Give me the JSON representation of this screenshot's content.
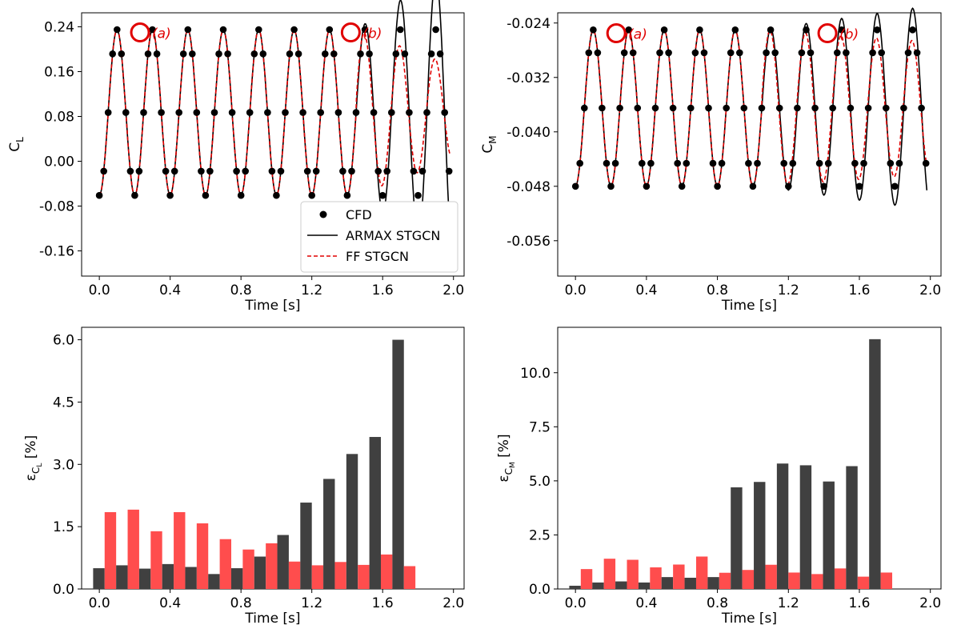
{
  "colors": {
    "cfd": "#000000",
    "armax": "#000000",
    "ff": "#e00000",
    "bar_armax": "#404040",
    "bar_ff": "#ff4d4d",
    "circle": "#e00000"
  },
  "legend": {
    "cfd": "CFD",
    "armax": "ARMAX STGCN",
    "ff": "FF STGCN"
  },
  "chart_data": [
    {
      "id": "cl",
      "type": "line",
      "xlabel": "Time [s]",
      "ylabel": "C",
      "ylabel_sub": "L",
      "xlim": [
        -0.1,
        2.06
      ],
      "ylim": [
        -0.205,
        0.265
      ],
      "xticks": [
        0.0,
        0.4,
        0.8,
        1.2,
        1.6,
        2.0
      ],
      "xtick_labels": [
        "0.0",
        "0.4",
        "0.8",
        "1.2",
        "1.6",
        "2.0"
      ],
      "yticks": [
        -0.16,
        -0.08,
        0.0,
        0.08,
        0.16,
        0.24
      ],
      "ytick_labels": [
        "-0.16",
        "-0.08",
        "0.00",
        "0.08",
        "0.16",
        "0.24"
      ],
      "signal": {
        "period": 0.2,
        "t_end": 1.98,
        "mean": 0.087,
        "amp": 0.148,
        "phase_t": 0.05,
        "cfd_step": 0.025,
        "armax_growth": [
          1.45,
          1.75
        ],
        "ff_shrink": [
          1.45,
          0.58
        ]
      },
      "annotations": [
        {
          "x": 0.23,
          "y": 0.23,
          "label": "(a)"
        },
        {
          "x": 1.42,
          "y": 0.23,
          "label": "(b)"
        }
      ]
    },
    {
      "id": "cm",
      "type": "line",
      "xlabel": "Time [s]",
      "ylabel": "C",
      "ylabel_sub": "M",
      "xlim": [
        -0.1,
        2.06
      ],
      "ylim": [
        -0.0612,
        -0.0225
      ],
      "xticks": [
        0.0,
        0.4,
        0.8,
        1.2,
        1.6,
        2.0
      ],
      "xtick_labels": [
        "0.0",
        "0.4",
        "0.8",
        "1.2",
        "1.6",
        "2.0"
      ],
      "yticks": [
        -0.056,
        -0.048,
        -0.04,
        -0.032,
        -0.024
      ],
      "ytick_labels": [
        "-0.056",
        "-0.048",
        "-0.040",
        "-0.032",
        "-0.024"
      ],
      "signal": {
        "period": 0.2,
        "t_end": 1.98,
        "mean": -0.0365,
        "amp": 0.0115,
        "phase_t": 0.05,
        "cfd_step": 0.025,
        "armax_growth": [
          1.05,
          1.3
        ],
        "ff_shrink": [
          1.05,
          0.85
        ]
      },
      "annotations": [
        {
          "x": 0.23,
          "y": -0.0255,
          "label": "(a)"
        },
        {
          "x": 1.42,
          "y": -0.0255,
          "label": "(b)"
        }
      ]
    },
    {
      "id": "err_cl",
      "type": "bar",
      "xlabel": "Time [s]",
      "ylabel": "ε",
      "ylabel_sub": "C",
      "ylabel_subsub": "L",
      "ylabel_unit": " [%]",
      "xlim": [
        -0.1,
        2.06
      ],
      "ylim": [
        0,
        6.3
      ],
      "xticks": [
        0.0,
        0.4,
        0.8,
        1.2,
        1.6,
        2.0
      ],
      "xtick_labels": [
        "0.0",
        "0.4",
        "0.8",
        "1.2",
        "1.6",
        "2.0"
      ],
      "yticks": [
        0,
        1.5,
        3.0,
        4.5,
        6.0
      ],
      "ytick_labels": [
        "0.0",
        "1.5",
        "3.0",
        "4.5",
        "6.0"
      ],
      "x": [
        0.03,
        0.16,
        0.29,
        0.42,
        0.55,
        0.68,
        0.81,
        0.94,
        1.07,
        1.2,
        1.33,
        1.46,
        1.59,
        1.72,
        1.85
      ],
      "series": [
        {
          "name": "ARMAX STGCN",
          "values": [
            0.5,
            0.57,
            0.49,
            0.6,
            0.53,
            0.36,
            0.5,
            0.78,
            1.3,
            2.08,
            2.65,
            3.25,
            3.66,
            6.0,
            0.0
          ]
        },
        {
          "name": "FF STGCN",
          "values": [
            1.85,
            1.91,
            1.39,
            1.85,
            1.58,
            1.2,
            0.95,
            1.1,
            0.66,
            0.57,
            0.65,
            0.58,
            0.83,
            0.55,
            0.0
          ]
        }
      ]
    },
    {
      "id": "err_cm",
      "type": "bar",
      "xlabel": "Time [s]",
      "ylabel": "ε",
      "ylabel_sub": "C",
      "ylabel_subsub": "M",
      "ylabel_unit": " [%]",
      "xlim": [
        -0.1,
        2.06
      ],
      "ylim": [
        0,
        12.1
      ],
      "xticks": [
        0.0,
        0.4,
        0.8,
        1.2,
        1.6,
        2.0
      ],
      "xtick_labels": [
        "0.0",
        "0.4",
        "0.8",
        "1.2",
        "1.6",
        "2.0"
      ],
      "yticks": [
        0.0,
        2.5,
        5.0,
        7.5,
        10.0
      ],
      "ytick_labels": [
        "0.0",
        "2.5",
        "5.0",
        "7.5",
        "10.0"
      ],
      "x": [
        0.03,
        0.16,
        0.29,
        0.42,
        0.55,
        0.68,
        0.81,
        0.94,
        1.07,
        1.2,
        1.33,
        1.46,
        1.59,
        1.72,
        1.85
      ],
      "series": [
        {
          "name": "ARMAX STGCN",
          "values": [
            0.15,
            0.3,
            0.35,
            0.3,
            0.55,
            0.52,
            0.55,
            4.7,
            4.95,
            5.8,
            5.72,
            4.97,
            5.68,
            11.55,
            0.0
          ]
        },
        {
          "name": "FF STGCN",
          "values": [
            0.92,
            1.4,
            1.35,
            1.0,
            1.13,
            1.5,
            0.75,
            0.88,
            1.12,
            0.76,
            0.69,
            0.95,
            0.57,
            0.76,
            0.0
          ]
        }
      ]
    }
  ]
}
